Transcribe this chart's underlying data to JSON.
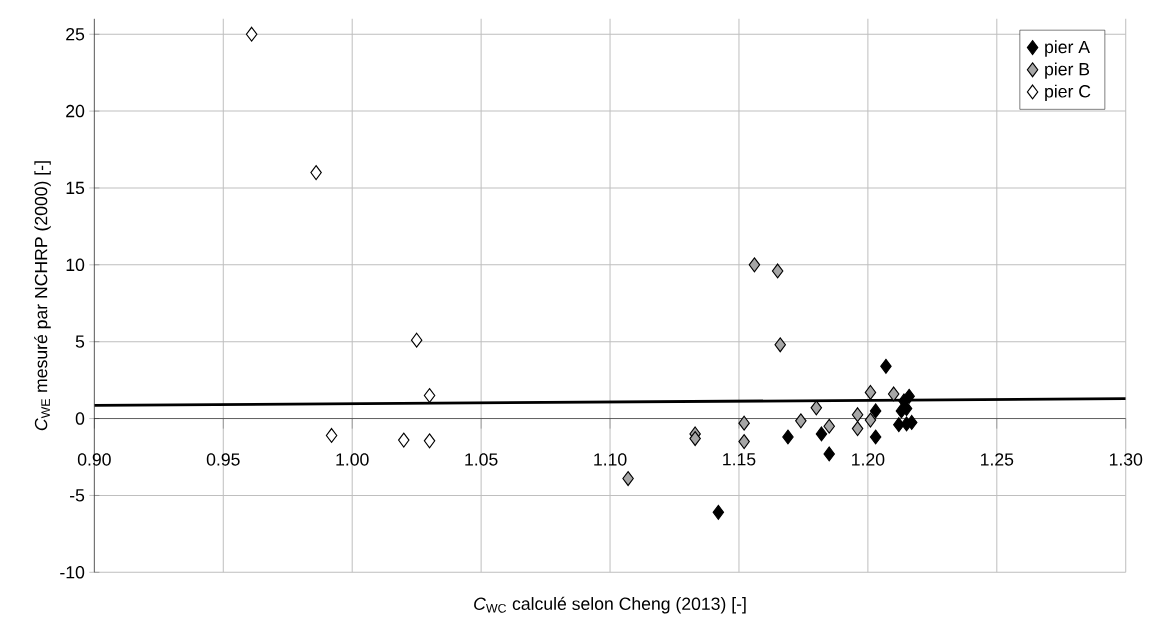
{
  "chart_data": {
    "type": "scatter",
    "xlabel": "*C*$_{WC}$ calculé selon Cheng (2013) [-]",
    "ylabel": "*C*$_{WE}$ mesuré par NCHRP (2000) [-]",
    "xlim": [
      0.9,
      1.3
    ],
    "ylim": [
      -10,
      26
    ],
    "xticks": [
      {
        "value": 0.9,
        "label": "0.90"
      },
      {
        "value": 0.95,
        "label": "0.95"
      },
      {
        "value": 1.0,
        "label": "1.00"
      },
      {
        "value": 1.05,
        "label": "1.05"
      },
      {
        "value": 1.1,
        "label": "1.10"
      },
      {
        "value": 1.15,
        "label": "1.15"
      },
      {
        "value": 1.2,
        "label": "1.20"
      },
      {
        "value": 1.25,
        "label": "1.25"
      },
      {
        "value": 1.3,
        "label": "1.30"
      }
    ],
    "yticks": [
      -10,
      -5,
      0,
      5,
      10,
      15,
      20,
      25
    ],
    "grid": true,
    "legend": "top right",
    "marker": "diamond",
    "series": [
      {
        "name": "pier A",
        "color": "#000000",
        "x": [
          1.207,
          1.169,
          1.182,
          1.185,
          1.203,
          1.203,
          1.142,
          1.214,
          1.216,
          1.215,
          1.213,
          1.212,
          1.215,
          1.217
        ],
        "values": [
          3.4,
          -1.2,
          -1.0,
          -2.3,
          0.5,
          -1.2,
          -6.1,
          1.15,
          1.45,
          0.65,
          0.5,
          -0.4,
          -0.35,
          -0.25
        ]
      },
      {
        "name": "pier B",
        "color": "#a6a6a6",
        "x": [
          1.107,
          1.133,
          1.133,
          1.156,
          1.165,
          1.166,
          1.152,
          1.152,
          1.174,
          1.18,
          1.185,
          1.196,
          1.196,
          1.201,
          1.201,
          1.21
        ],
        "values": [
          -3.9,
          -1.0,
          -1.3,
          10.0,
          9.6,
          4.8,
          -0.3,
          -1.5,
          -0.15,
          0.7,
          -0.5,
          0.25,
          -0.65,
          1.7,
          -0.1,
          1.6
        ]
      },
      {
        "name": "pier C",
        "color": "#ffffff",
        "x": [
          0.961,
          0.986,
          1.025,
          1.03,
          0.992,
          1.02,
          1.03
        ],
        "values": [
          25,
          16,
          5.1,
          1.5,
          -1.1,
          -1.4,
          -1.45
        ]
      },
      {
        "type": "line",
        "marker": "none",
        "color": "#000000",
        "x": [
          0.9,
          1.3
        ],
        "values": [
          0.85,
          1.3
        ]
      }
    ]
  }
}
